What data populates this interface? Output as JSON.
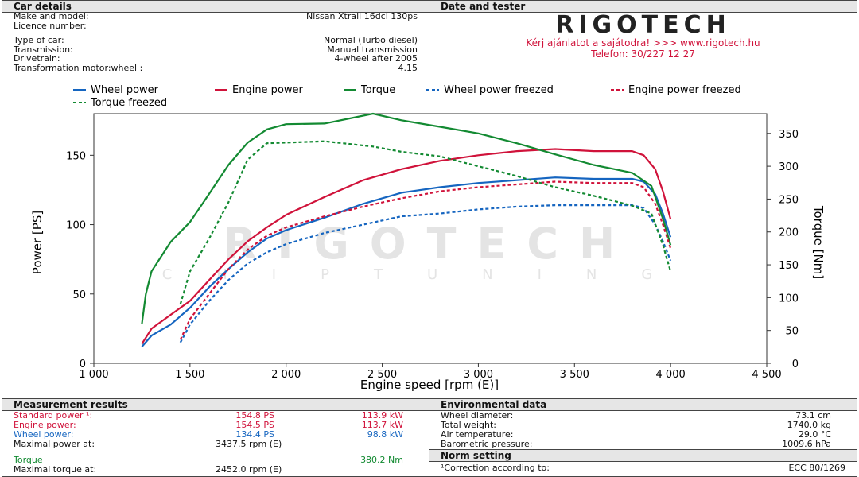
{
  "car": {
    "title": "Car details",
    "make_label": "Make and model:",
    "make_value": "Nissan Xtrail 16dci 130ps",
    "licence_label": "Licence number:",
    "licence_value": "",
    "type_label": "Type of car:",
    "type_value": "Normal (Turbo diesel)",
    "transmission_label": "Transmission:",
    "transmission_value": "Manual transmission",
    "drivetrain_label": "Drivetrain:",
    "drivetrain_value": "4-wheel after 2005",
    "ratio_label": "Transformation motor:wheel :",
    "ratio_value": "4.15"
  },
  "tester": {
    "title": "Date and tester",
    "logo_text": "RIGOTECH",
    "line1": "Kérj ajánlatot a sajátodra!  >>>  www.rigotech.hu",
    "line2": "Telefon: 30/227 12 27"
  },
  "watermark": {
    "main": "RIGOTECH",
    "sub": "CHIPTUNING"
  },
  "colors": {
    "wheel": "#1565c0",
    "engine": "#d0123a",
    "torque": "#138a32",
    "accent": "#d0123a"
  },
  "chart_data": {
    "type": "line",
    "xlabel": "Engine speed [rpm (E)]",
    "ylabel_left": "Power [PS]",
    "ylabel_right": "Torque [Nm]",
    "xlim": [
      1000,
      4500
    ],
    "ylim_left": [
      0,
      180
    ],
    "ylim_right": [
      0,
      380
    ],
    "x_ticks": [
      1000,
      1500,
      2000,
      2500,
      3000,
      3500,
      4000,
      4500
    ],
    "x_tick_labels": [
      "1 000",
      "1 500",
      "2 000",
      "2 500",
      "3 000",
      "3 500",
      "4 000",
      "4 500"
    ],
    "y_left_ticks": [
      0,
      50,
      100,
      150
    ],
    "y_right_ticks": [
      0,
      50,
      100,
      150,
      200,
      250,
      300,
      350
    ],
    "grid": false,
    "legend_position": "top-left",
    "series": [
      {
        "name": "Wheel power",
        "axis": "left",
        "style": "solid",
        "color": "#1565c0",
        "points": [
          [
            1250,
            12
          ],
          [
            1300,
            20
          ],
          [
            1400,
            28
          ],
          [
            1500,
            40
          ],
          [
            1600,
            55
          ],
          [
            1700,
            68
          ],
          [
            1800,
            80
          ],
          [
            1900,
            90
          ],
          [
            2000,
            96
          ],
          [
            2200,
            105
          ],
          [
            2400,
            115
          ],
          [
            2600,
            123
          ],
          [
            2800,
            127
          ],
          [
            3000,
            130
          ],
          [
            3200,
            132
          ],
          [
            3400,
            134
          ],
          [
            3600,
            133
          ],
          [
            3800,
            133
          ],
          [
            3860,
            131
          ],
          [
            3920,
            122
          ],
          [
            3960,
            108
          ],
          [
            4000,
            91
          ]
        ]
      },
      {
        "name": "Engine power",
        "axis": "left",
        "style": "solid",
        "color": "#d0123a",
        "points": [
          [
            1250,
            14
          ],
          [
            1300,
            25
          ],
          [
            1400,
            35
          ],
          [
            1500,
            45
          ],
          [
            1600,
            60
          ],
          [
            1700,
            75
          ],
          [
            1800,
            88
          ],
          [
            1900,
            98
          ],
          [
            2000,
            107
          ],
          [
            2200,
            120
          ],
          [
            2400,
            132
          ],
          [
            2600,
            140
          ],
          [
            2800,
            146
          ],
          [
            3000,
            150
          ],
          [
            3200,
            153
          ],
          [
            3400,
            154.5
          ],
          [
            3600,
            153
          ],
          [
            3800,
            153
          ],
          [
            3860,
            150
          ],
          [
            3920,
            140
          ],
          [
            3960,
            124
          ],
          [
            4000,
            104
          ]
        ]
      },
      {
        "name": "Torque",
        "axis": "right",
        "style": "solid",
        "color": "#138a32",
        "points": [
          [
            1250,
            60
          ],
          [
            1270,
            105
          ],
          [
            1300,
            140
          ],
          [
            1400,
            185
          ],
          [
            1500,
            215
          ],
          [
            1600,
            258
          ],
          [
            1700,
            302
          ],
          [
            1800,
            336
          ],
          [
            1900,
            356
          ],
          [
            2000,
            364
          ],
          [
            2200,
            365
          ],
          [
            2452,
            380
          ],
          [
            2600,
            370
          ],
          [
            2800,
            360
          ],
          [
            3000,
            350
          ],
          [
            3200,
            335
          ],
          [
            3400,
            318
          ],
          [
            3600,
            302
          ],
          [
            3800,
            290
          ],
          [
            3900,
            270
          ],
          [
            3960,
            220
          ],
          [
            4000,
            180
          ]
        ]
      },
      {
        "name": "Wheel power freezed",
        "axis": "left",
        "style": "dashed",
        "color": "#1565c0",
        "points": [
          [
            1450,
            15
          ],
          [
            1500,
            28
          ],
          [
            1600,
            45
          ],
          [
            1700,
            60
          ],
          [
            1800,
            72
          ],
          [
            1900,
            80
          ],
          [
            2000,
            86
          ],
          [
            2200,
            94
          ],
          [
            2400,
            100
          ],
          [
            2600,
            106
          ],
          [
            2800,
            108
          ],
          [
            3000,
            111
          ],
          [
            3200,
            113
          ],
          [
            3400,
            114
          ],
          [
            3600,
            114
          ],
          [
            3800,
            114
          ],
          [
            3860,
            112
          ],
          [
            3920,
            100
          ],
          [
            3960,
            88
          ],
          [
            4000,
            74
          ]
        ]
      },
      {
        "name": "Engine power freezed",
        "axis": "left",
        "style": "dashed",
        "color": "#d0123a",
        "points": [
          [
            1450,
            17
          ],
          [
            1500,
            32
          ],
          [
            1600,
            50
          ],
          [
            1700,
            68
          ],
          [
            1800,
            82
          ],
          [
            1900,
            92
          ],
          [
            2000,
            98
          ],
          [
            2200,
            106
          ],
          [
            2400,
            113
          ],
          [
            2600,
            119
          ],
          [
            2800,
            124
          ],
          [
            3000,
            127
          ],
          [
            3200,
            129
          ],
          [
            3400,
            131
          ],
          [
            3600,
            130
          ],
          [
            3800,
            130
          ],
          [
            3860,
            127
          ],
          [
            3920,
            115
          ],
          [
            3960,
            100
          ],
          [
            4000,
            83
          ]
        ]
      },
      {
        "name": "Torque freezed",
        "axis": "right",
        "style": "dashed",
        "color": "#138a32",
        "points": [
          [
            1450,
            90
          ],
          [
            1500,
            140
          ],
          [
            1600,
            190
          ],
          [
            1700,
            245
          ],
          [
            1800,
            310
          ],
          [
            1900,
            335
          ],
          [
            2000,
            336
          ],
          [
            2200,
            338
          ],
          [
            2452,
            330
          ],
          [
            2600,
            322
          ],
          [
            2800,
            315
          ],
          [
            3000,
            300
          ],
          [
            3200,
            285
          ],
          [
            3400,
            268
          ],
          [
            3600,
            255
          ],
          [
            3800,
            240
          ],
          [
            3900,
            228
          ],
          [
            3960,
            180
          ],
          [
            4000,
            140
          ]
        ]
      }
    ]
  },
  "measurement": {
    "title": "Measurement results",
    "rows": [
      {
        "label": "Standard power ¹:",
        "ps": "154.8 PS",
        "kw": "113.9 kW",
        "cls": "red"
      },
      {
        "label": "Engine power:",
        "ps": "154.5 PS",
        "kw": "113.7 kW",
        "cls": "red"
      },
      {
        "label": "Wheel power:",
        "ps": "134.4 PS",
        "kw": "98.8 kW",
        "cls": "blue"
      }
    ],
    "max_power_label": "Maximal power at:",
    "max_power_value": "3437.5 rpm (E)",
    "torque_label": "Torque",
    "torque_value": "380.2 Nm",
    "max_torque_label": "Maximal torque at:",
    "max_torque_value": "2452.0 rpm (E)"
  },
  "environment": {
    "title": "Environmental data",
    "rows": [
      {
        "label": "Wheel diameter:",
        "value": "73.1 cm"
      },
      {
        "label": "Total weight:",
        "value": "1740.0 kg"
      },
      {
        "label": "Air temperature:",
        "value": "29.0 °C"
      },
      {
        "label": "Barometric pressure:",
        "value": "1009.6 hPa"
      }
    ]
  },
  "norm": {
    "title": "Norm setting",
    "label": "¹Correction according to:",
    "value": "ECC 80/1269"
  }
}
